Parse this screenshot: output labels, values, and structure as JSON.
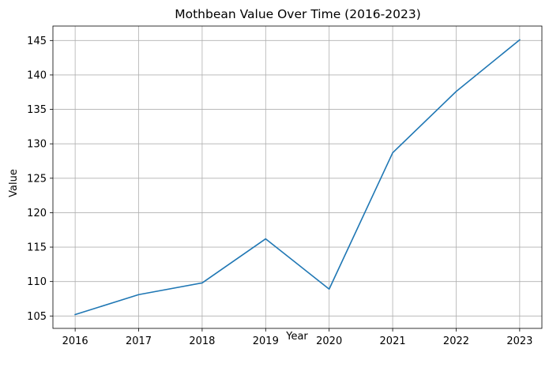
{
  "chart_data": {
    "type": "line",
    "title": "Mothbean Value Over Time (2016-2023)",
    "xlabel": "Year",
    "ylabel": "Value",
    "x": [
      2016,
      2017,
      2018,
      2019,
      2020,
      2021,
      2022,
      2023
    ],
    "x_tick_labels": [
      "2016",
      "2017",
      "2018",
      "2019",
      "2020",
      "2021",
      "2022",
      "2023"
    ],
    "y_ticks": [
      105,
      110,
      115,
      120,
      125,
      130,
      135,
      140,
      145
    ],
    "y_tick_labels": [
      "105",
      "110",
      "115",
      "120",
      "125",
      "130",
      "135",
      "140",
      "145"
    ],
    "series": [
      {
        "values": [
          105.2,
          108.1,
          109.8,
          116.2,
          108.9,
          128.7,
          137.6,
          145.1
        ],
        "color": "#1f77b4"
      }
    ],
    "xlim": [
      2015.65,
      2023.35
    ],
    "ylim": [
      103.2,
      147.1
    ],
    "grid": true,
    "legend": "none"
  }
}
